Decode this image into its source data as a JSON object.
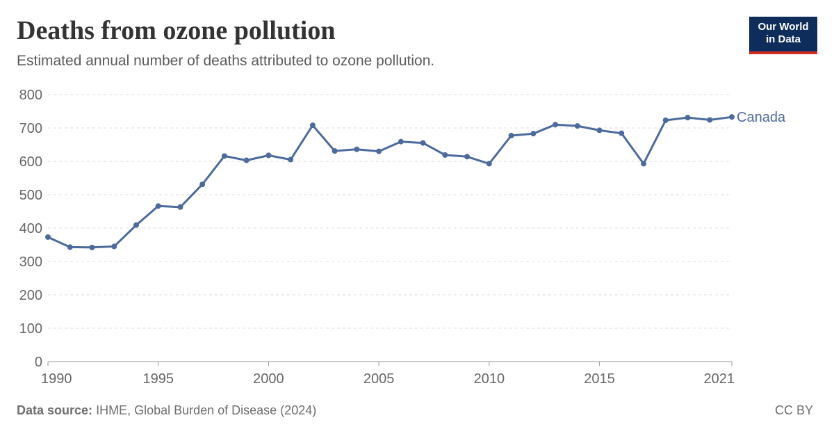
{
  "header": {
    "title": "Deaths from ozone pollution",
    "subtitle": "Estimated annual number of deaths attributed to ozone pollution."
  },
  "logo": {
    "line1": "Our World",
    "line2": "in Data"
  },
  "footer": {
    "source_label": "Data source:",
    "source_text": "IHME, Global Burden of Disease (2024)",
    "license": "CC BY"
  },
  "colors": {
    "series": "#4c6a9c",
    "logo_bg": "#0f2d5a",
    "logo_accent": "#d42b21"
  },
  "chart_data": {
    "type": "line",
    "title": "Deaths from ozone pollution",
    "xlim": [
      1990,
      2021
    ],
    "ylim": [
      0,
      800
    ],
    "y_ticks": [
      0,
      100,
      200,
      300,
      400,
      500,
      600,
      700,
      800
    ],
    "x_ticks": [
      1990,
      1995,
      2000,
      2005,
      2010,
      2015,
      2021
    ],
    "grid": true,
    "series": [
      {
        "name": "Canada",
        "x": [
          1990,
          1991,
          1992,
          1993,
          1994,
          1995,
          1996,
          1997,
          1998,
          1999,
          2000,
          2001,
          2002,
          2003,
          2004,
          2005,
          2006,
          2007,
          2008,
          2009,
          2010,
          2011,
          2012,
          2013,
          2014,
          2015,
          2016,
          2017,
          2018,
          2019,
          2020,
          2021
        ],
        "values": [
          373,
          343,
          342,
          345,
          409,
          466,
          463,
          531,
          616,
          603,
          618,
          605,
          708,
          631,
          636,
          630,
          659,
          655,
          619,
          614,
          593,
          677,
          683,
          710,
          706,
          693,
          684,
          593,
          723,
          731,
          724,
          733
        ]
      }
    ]
  }
}
